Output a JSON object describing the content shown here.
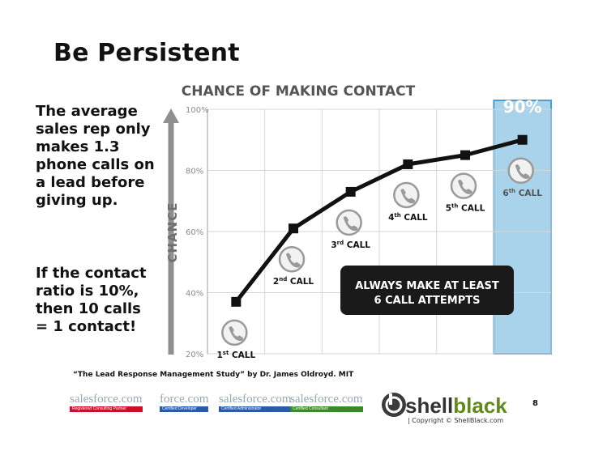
{
  "slide": {
    "title": "Be Persistent",
    "side_text_1": "The average sales rep only makes 1.3 phone calls on a lead before giving up.",
    "side_text_2": "If the contact ratio is 10%, then 10 calls = 1 contact!",
    "citation": "“The Lead Response Management Study” by Dr. James Oldroyd. MIT",
    "page_number": "8",
    "copyright": "| Copyright © ShellBlack.com",
    "brand_name_1": "shell",
    "brand_name_2": "black"
  },
  "logos": [
    {
      "name": "salesforce.com",
      "tag": "Registered Consulting Partner",
      "color": "#c8102e"
    },
    {
      "name": "force.com",
      "tag": "Certified Developer",
      "color": "#2a5aa8"
    },
    {
      "name": "salesforce.com",
      "tag": "Certified Administrator",
      "color": "#2a5aa8"
    },
    {
      "name": "salesforce.com",
      "tag": "Certified Consultant",
      "color": "#3a8a2a"
    }
  ],
  "chart_data": {
    "type": "line",
    "title": "CHANCE OF MAKING CONTACT",
    "ylabel": "CHANCE",
    "xlabel": "",
    "ylim": [
      20,
      100
    ],
    "y_ticks": [
      "100%",
      "80%",
      "60%",
      "40%",
      "20%"
    ],
    "y_tick_values": [
      100,
      80,
      60,
      40,
      20
    ],
    "categories": [
      "1st CALL",
      "2nd CALL",
      "3rd CALL",
      "4th CALL",
      "5th CALL",
      "6th CALL"
    ],
    "category_ordinals": [
      "1",
      "2",
      "3",
      "4",
      "5",
      "6"
    ],
    "category_suffixes": [
      "st",
      "nd",
      "rd",
      "th",
      "th",
      "th"
    ],
    "category_word": "CALL",
    "values": [
      37,
      61,
      73,
      82,
      85,
      90
    ],
    "highlight_label": "90%",
    "callout": [
      "ALWAYS MAKE AT LEAST",
      "6 CALL ATTEMPTS"
    ],
    "grid": true,
    "colors": {
      "line": "#111111",
      "highlight": "#a9d3ea",
      "highlight_border": "#4a9fd0",
      "callout": "#1a1a1a",
      "grid": "#d6d6d6",
      "axis_text": "#8a8a8a",
      "title": "#555555"
    }
  }
}
